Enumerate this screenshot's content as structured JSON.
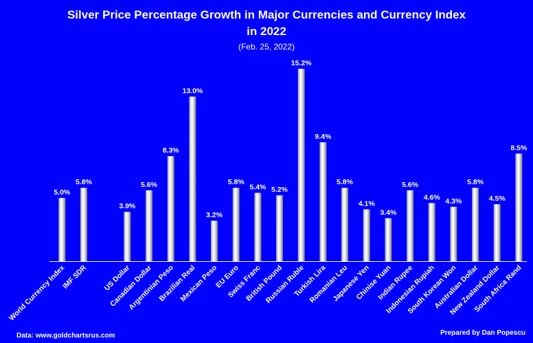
{
  "chart_data": {
    "type": "bar",
    "title": "Silver Price Percentage Growth in Major Currencies and Currency Index",
    "title_line2": "in 2022",
    "subtitle": "(Feb. 25, 2022)",
    "xlabel": "",
    "ylabel": "",
    "ylim": [
      0,
      16
    ],
    "grid": false,
    "legend": "none",
    "categories": [
      "World Currency Index",
      "IMF SDR",
      "",
      "US Dollar",
      "Canadian Dollar",
      "Argentinian Peso",
      "Brazilian Real",
      "Mexican Peso",
      "EU Euro",
      "Swiss Franc",
      "British Pound",
      "Russian Ruble",
      "Turkish Lira",
      "Romanian Leu",
      "Japanese Yen",
      "Chinise Yuan",
      "Indian Rupee",
      "Indonesian Rupiah",
      "South Korean Won",
      "Australian Dollar",
      "New Zealand Dollar",
      "South Africa Rand"
    ],
    "values": [
      5.0,
      5.8,
      null,
      3.9,
      5.6,
      8.3,
      13.0,
      3.2,
      5.8,
      5.4,
      5.2,
      15.2,
      9.4,
      5.8,
      4.1,
      3.4,
      5.6,
      4.6,
      4.3,
      5.8,
      4.5,
      8.5
    ],
    "data_labels": [
      "5.0%",
      "5.8%",
      "",
      "3.9%",
      "5.6%",
      "8.3%",
      "13.0%",
      "3.2%",
      "5.8%",
      "5.4%",
      "5.2%",
      "15.2%",
      "9.4%",
      "5.8%",
      "4.1%",
      "3.4%",
      "5.6%",
      "4.6%",
      "4.3%",
      "5.8%",
      "4.5%",
      "8.5%"
    ],
    "colors": {
      "background": "#0000ff",
      "text": "#ffffff",
      "bar_light": "#ffffff",
      "bar_dark": "#8c8c8c"
    }
  },
  "footer": {
    "source": "Data: www.goldchartsrus.com",
    "credit": "Prepared by Dan Popescu"
  }
}
